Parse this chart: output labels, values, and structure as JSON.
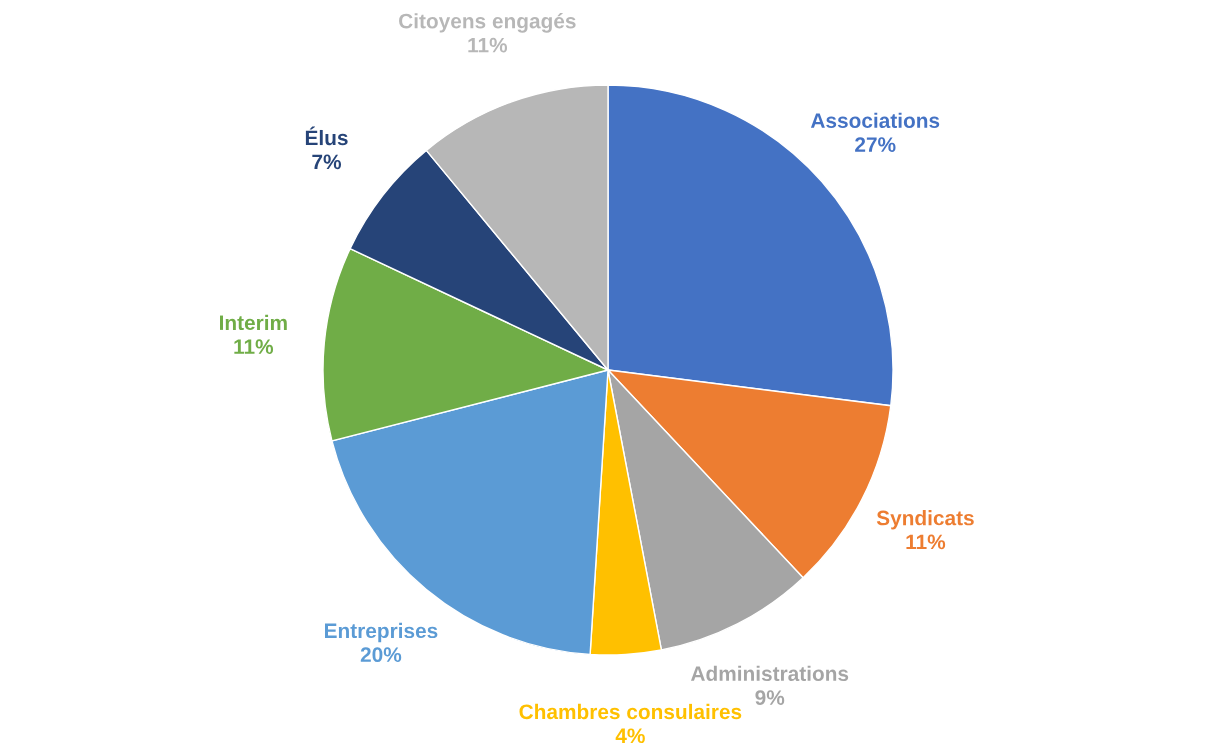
{
  "chart_data": {
    "type": "pie",
    "categories": [
      "Associations",
      "Syndicats",
      "Administrations",
      "Chambres consulaires",
      "Entreprises",
      "Interim",
      "Élus",
      "Citoyens engagés"
    ],
    "values": [
      27,
      11,
      9,
      4,
      20,
      11,
      7,
      11
    ],
    "value_labels": [
      "27%",
      "11%",
      "9%",
      "4%",
      "20%",
      "11%",
      "7%",
      "11%"
    ],
    "colors": [
      "#4472c4",
      "#ed7d31",
      "#a5a5a5",
      "#ffc000",
      "#5b9bd5",
      "#70ad47",
      "#264478",
      "#b7b7b7"
    ],
    "legend": false
  }
}
